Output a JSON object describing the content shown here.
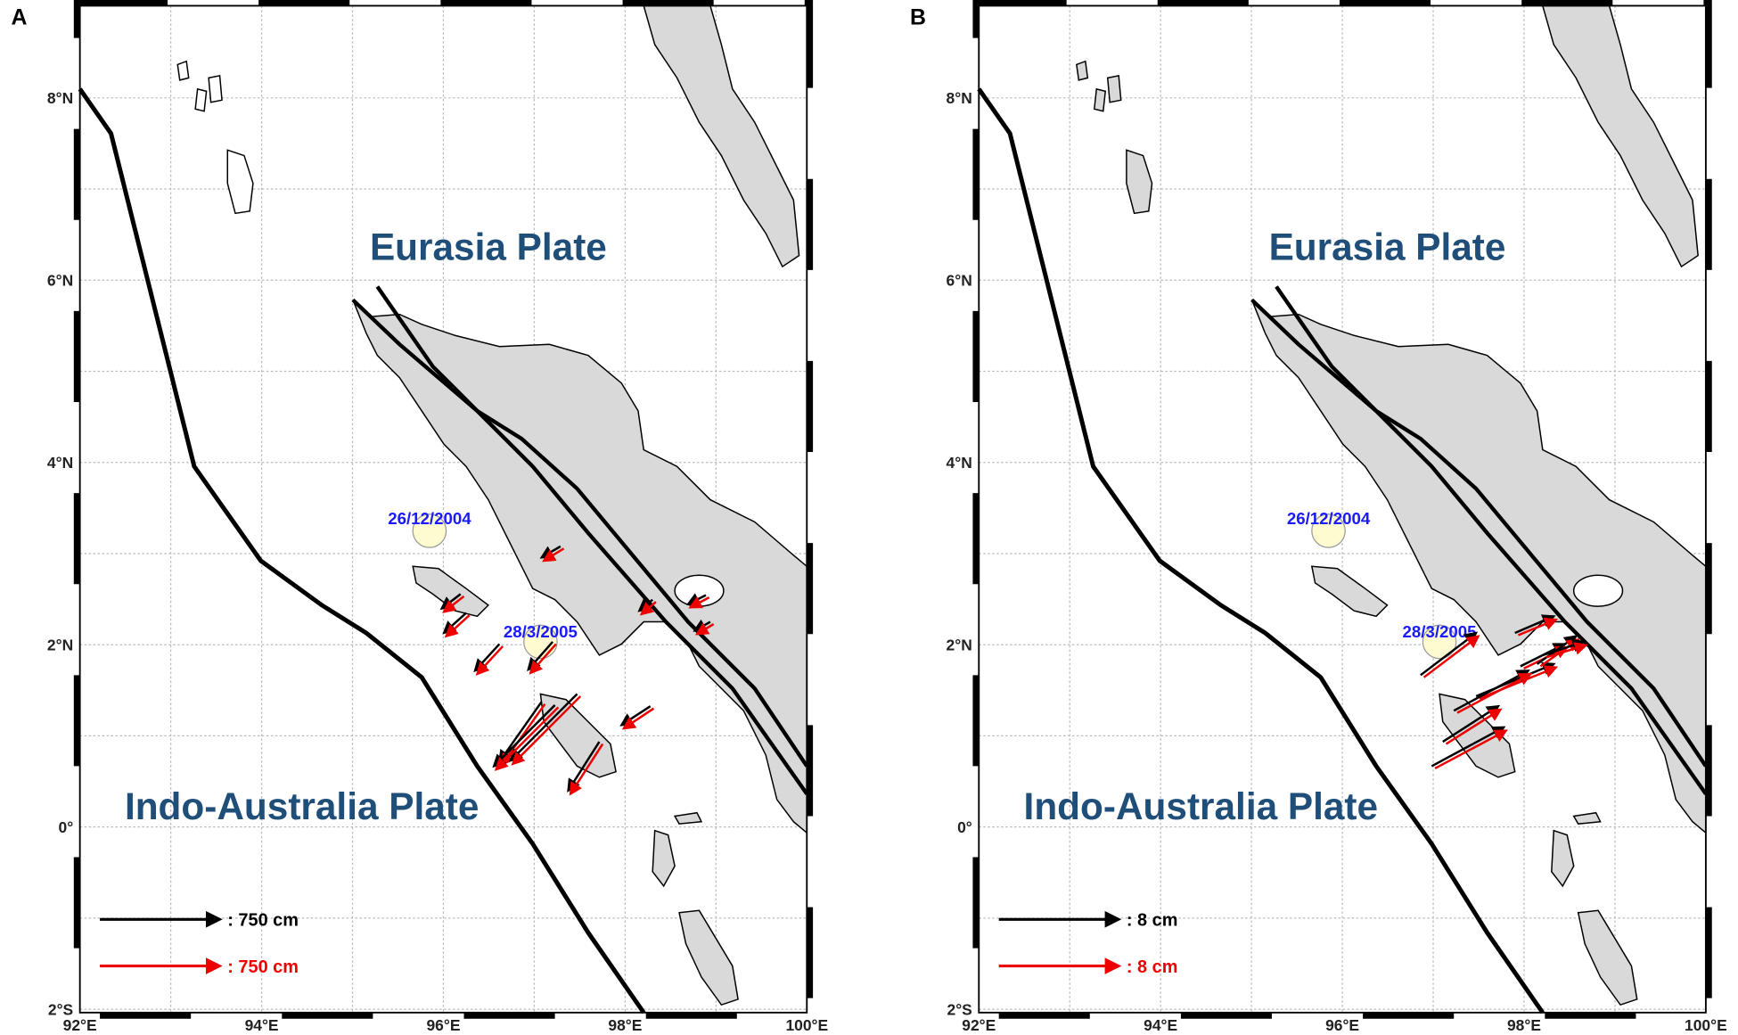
{
  "panels": [
    {
      "label": "A",
      "eurasia": "Eurasia Plate",
      "indo": "Indo-Australia Plate",
      "events": [
        "26/12/2004",
        "28/3/2005"
      ],
      "legend": [
        ": 750 cm",
        ": 750 cm"
      ]
    },
    {
      "label": "B",
      "eurasia": "Eurasia Plate",
      "indo": "Indo-Australia Plate",
      "events": [
        "26/12/2004",
        "28/3/2005"
      ],
      "legend": [
        ": 8 cm",
        ": 8 cm"
      ]
    }
  ],
  "x_labels": [
    "92°E",
    "94°E",
    "96°E",
    "98°E",
    "100°E"
  ],
  "y_labels": [
    "2°S",
    "0°",
    "2°N",
    "4°N",
    "6°N",
    "8°N"
  ]
}
